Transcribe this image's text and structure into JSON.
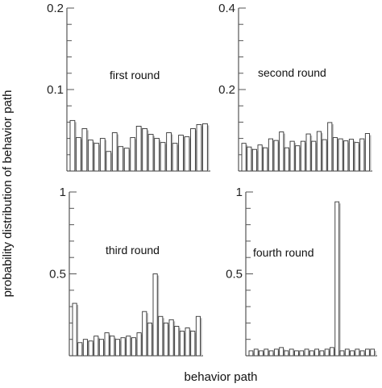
{
  "ylabel": "probability distribution of behavior path",
  "xlabel": "behavior path",
  "chart_data": [
    {
      "type": "bar",
      "title": "first round",
      "ylim": [
        0,
        0.2
      ],
      "yticks": [
        {
          "value": 0.1,
          "label": "0.1"
        },
        {
          "value": 0.2,
          "label": "0.2"
        }
      ],
      "values": [
        0.062,
        0.041,
        0.052,
        0.038,
        0.034,
        0.04,
        0.024,
        0.047,
        0.03,
        0.028,
        0.041,
        0.055,
        0.052,
        0.045,
        0.04,
        0.035,
        0.047,
        0.034,
        0.044,
        0.042,
        0.052,
        0.057,
        0.058
      ]
    },
    {
      "type": "bar",
      "title": "second round",
      "ylim": [
        0,
        0.4
      ],
      "yticks": [
        {
          "value": 0.2,
          "label": "0.2"
        },
        {
          "value": 0.4,
          "label": "0.4"
        }
      ],
      "values": [
        0.068,
        0.059,
        0.053,
        0.064,
        0.057,
        0.079,
        0.075,
        0.096,
        0.057,
        0.073,
        0.062,
        0.073,
        0.091,
        0.073,
        0.097,
        0.077,
        0.119,
        0.082,
        0.079,
        0.074,
        0.078,
        0.07,
        0.079,
        0.092
      ]
    },
    {
      "type": "bar",
      "title": "third round",
      "ylim": [
        0,
        1
      ],
      "yticks": [
        {
          "value": 0.5,
          "label": "0.5"
        },
        {
          "value": 1,
          "label": "1"
        }
      ],
      "values": [
        0.32,
        0.08,
        0.1,
        0.09,
        0.12,
        0.1,
        0.14,
        0.12,
        0.1,
        0.11,
        0.12,
        0.11,
        0.14,
        0.27,
        0.2,
        0.5,
        0.24,
        0.2,
        0.22,
        0.18,
        0.15,
        0.17,
        0.15,
        0.24
      ]
    },
    {
      "type": "bar",
      "title": "fourth round",
      "ylim": [
        0,
        1
      ],
      "yticks": [
        {
          "value": 0.5,
          "label": "0.5"
        },
        {
          "value": 1,
          "label": "1"
        }
      ],
      "values": [
        0.03,
        0.04,
        0.03,
        0.04,
        0.03,
        0.04,
        0.05,
        0.03,
        0.04,
        0.03,
        0.03,
        0.04,
        0.03,
        0.04,
        0.03,
        0.04,
        0.05,
        0.94,
        0.03,
        0.04,
        0.03,
        0.04,
        0.03,
        0.04,
        0.04
      ]
    }
  ]
}
